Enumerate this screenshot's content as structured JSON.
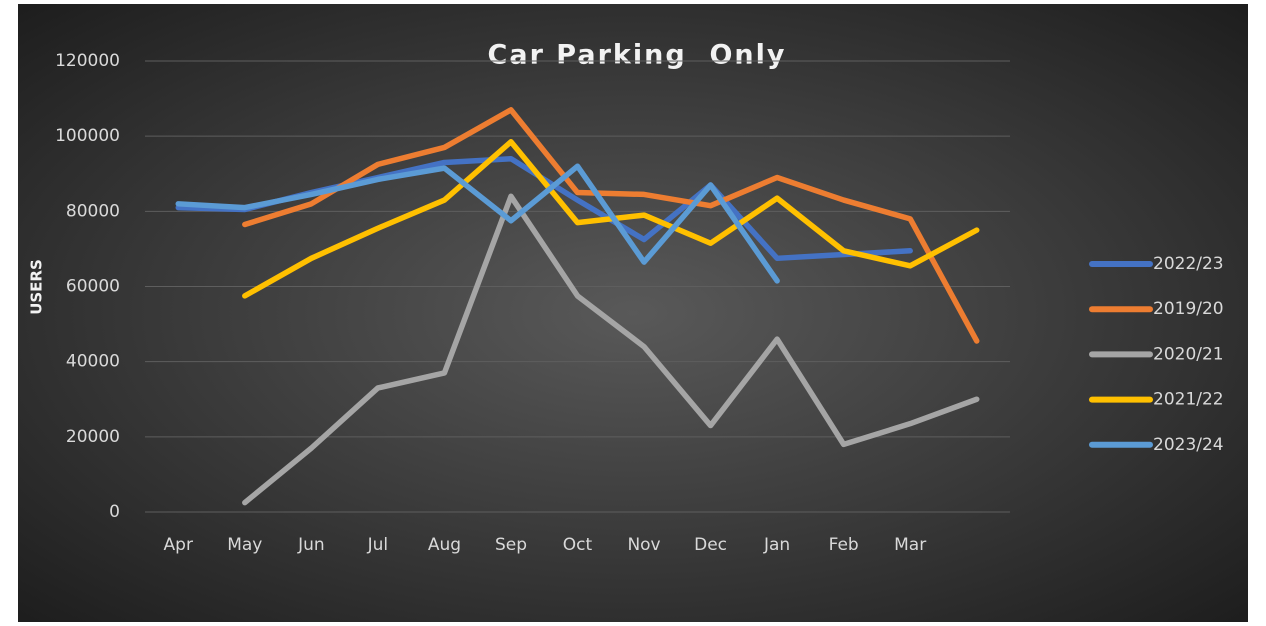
{
  "chart_data": {
    "type": "line",
    "title": "Car Parking  Only",
    "y_label": "USERS",
    "categories": [
      "Apr",
      "May",
      "Jun",
      "Jul",
      "Aug",
      "Sep",
      "Oct",
      "Nov",
      "Dec",
      "Jan",
      "Feb",
      "Mar",
      null
    ],
    "series": [
      {
        "name": "2022/23",
        "color": "#4472c4",
        "values": [
          81000,
          80500,
          85000,
          89000,
          93000,
          94000,
          83000,
          72500,
          87000,
          67500,
          68500,
          69500,
          null
        ]
      },
      {
        "name": "2019/20",
        "color": "#ed7d31",
        "values": [
          null,
          76500,
          82000,
          92500,
          97000,
          107000,
          85000,
          84500,
          81500,
          89000,
          83000,
          78000,
          45500
        ]
      },
      {
        "name": "2020/21",
        "color": "#a5a5a5",
        "values": [
          null,
          2500,
          17000,
          33000,
          37000,
          84000,
          57500,
          44000,
          23000,
          46000,
          18000,
          23500,
          30000
        ]
      },
      {
        "name": "2021/22",
        "color": "#ffc000",
        "values": [
          null,
          57500,
          67500,
          75500,
          83000,
          98500,
          77000,
          79000,
          71500,
          83500,
          69500,
          65500,
          75000
        ]
      },
      {
        "name": "2023/24",
        "color": "#5b9bd5",
        "values": [
          82000,
          81000,
          84500,
          88500,
          91500,
          77500,
          92000,
          66500,
          87000,
          61500,
          null,
          null,
          null
        ]
      }
    ],
    "ylim": [
      0,
      120000
    ],
    "yticks": [
      0,
      20000,
      40000,
      60000,
      80000,
      100000,
      120000
    ],
    "grid": true,
    "legend": "right"
  }
}
